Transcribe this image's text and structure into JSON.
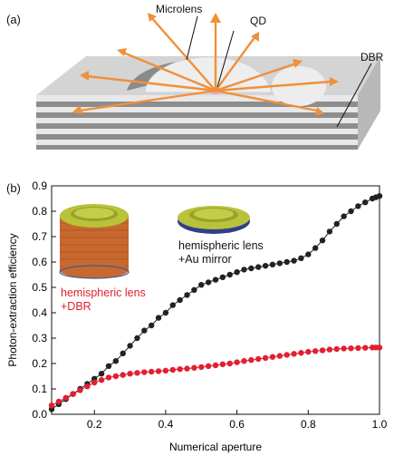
{
  "figure": {
    "panel_a": {
      "label": "(a)",
      "callouts": {
        "microlens": "Microlens",
        "qd": "QD",
        "dbr": "DBR"
      }
    },
    "panel_b": {
      "label": "(b)",
      "inset_labels": {
        "dbr_line1": "hemispheric lens",
        "dbr_line2": "+DBR",
        "au_line1": "hemispheric lens",
        "au_line2": "+Au mirror"
      }
    }
  },
  "colors": {
    "arrow": "#f0903a",
    "qd": "#f5a0c0",
    "dbr_series": "#e02030",
    "au_series": "#222222",
    "dbr_label": "#e02030",
    "au_label": "#111111",
    "lens_green": "#b8c23a",
    "pillar_orange": "#c8682e",
    "substrate": "#d4d4d4"
  },
  "chart_data": {
    "type": "line",
    "xlabel": "Numerical aperture",
    "ylabel": "Photon-extraction efficiency",
    "xlim": [
      0.08,
      1.0
    ],
    "ylim": [
      0.0,
      0.9
    ],
    "xticks": [
      "0.2",
      "0.4",
      "0.6",
      "0.8",
      "1.0"
    ],
    "xtick_values": [
      0.2,
      0.4,
      0.6,
      0.8,
      1.0
    ],
    "yticks": [
      "0.0",
      "0.1",
      "0.2",
      "0.3",
      "0.4",
      "0.5",
      "0.6",
      "0.7",
      "0.8",
      "0.9"
    ],
    "ytick_values": [
      0.0,
      0.1,
      0.2,
      0.3,
      0.4,
      0.5,
      0.6,
      0.7,
      0.8,
      0.9
    ],
    "grid": false,
    "series": [
      {
        "key": "au_mirror",
        "x": [
          0.08,
          0.1,
          0.12,
          0.14,
          0.16,
          0.18,
          0.2,
          0.22,
          0.24,
          0.26,
          0.28,
          0.3,
          0.32,
          0.34,
          0.36,
          0.38,
          0.4,
          0.42,
          0.44,
          0.46,
          0.48,
          0.5,
          0.52,
          0.54,
          0.56,
          0.58,
          0.6,
          0.62,
          0.64,
          0.66,
          0.68,
          0.7,
          0.72,
          0.74,
          0.76,
          0.78,
          0.8,
          0.82,
          0.84,
          0.86,
          0.88,
          0.9,
          0.92,
          0.94,
          0.96,
          0.98,
          0.99,
          1.0
        ],
        "values": [
          0.02,
          0.04,
          0.06,
          0.08,
          0.1,
          0.12,
          0.14,
          0.16,
          0.19,
          0.21,
          0.24,
          0.27,
          0.3,
          0.33,
          0.35,
          0.38,
          0.4,
          0.43,
          0.45,
          0.47,
          0.49,
          0.51,
          0.52,
          0.53,
          0.54,
          0.55,
          0.56,
          0.57,
          0.575,
          0.58,
          0.585,
          0.59,
          0.595,
          0.6,
          0.605,
          0.615,
          0.63,
          0.655,
          0.685,
          0.72,
          0.75,
          0.78,
          0.8,
          0.82,
          0.835,
          0.85,
          0.855,
          0.86
        ]
      },
      {
        "key": "dbr",
        "x": [
          0.08,
          0.1,
          0.12,
          0.14,
          0.16,
          0.18,
          0.2,
          0.22,
          0.24,
          0.26,
          0.28,
          0.3,
          0.32,
          0.34,
          0.36,
          0.38,
          0.4,
          0.42,
          0.44,
          0.46,
          0.48,
          0.5,
          0.52,
          0.54,
          0.56,
          0.58,
          0.6,
          0.62,
          0.64,
          0.66,
          0.68,
          0.7,
          0.72,
          0.74,
          0.76,
          0.78,
          0.8,
          0.82,
          0.84,
          0.86,
          0.88,
          0.9,
          0.92,
          0.94,
          0.96,
          0.98,
          0.99,
          1.0
        ],
        "values": [
          0.035,
          0.05,
          0.065,
          0.08,
          0.095,
          0.11,
          0.125,
          0.135,
          0.145,
          0.15,
          0.155,
          0.16,
          0.163,
          0.166,
          0.168,
          0.17,
          0.172,
          0.175,
          0.178,
          0.18,
          0.183,
          0.186,
          0.19,
          0.193,
          0.197,
          0.2,
          0.205,
          0.21,
          0.214,
          0.218,
          0.222,
          0.226,
          0.23,
          0.234,
          0.238,
          0.242,
          0.246,
          0.249,
          0.252,
          0.255,
          0.257,
          0.259,
          0.26,
          0.261,
          0.262,
          0.263,
          0.263,
          0.263
        ]
      }
    ]
  }
}
